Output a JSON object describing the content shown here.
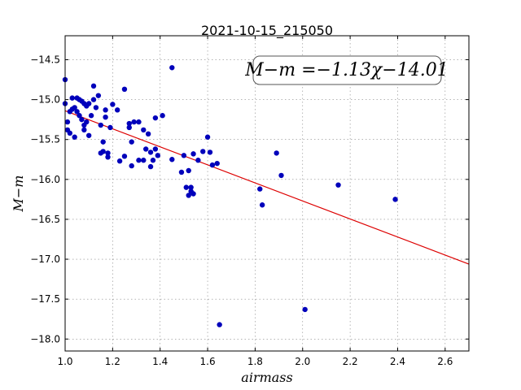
{
  "chart_data": {
    "type": "scatter",
    "title": "2021-10-15_215050",
    "xlabel": "airmass",
    "ylabel": "M−m",
    "xlim": [
      1.0,
      2.7
    ],
    "ylim": [
      -18.15,
      -14.2
    ],
    "y_inverted": true,
    "grid": true,
    "x_ticks": [
      1.0,
      1.2,
      1.4,
      1.6,
      1.8,
      2.0,
      2.2,
      2.4,
      2.6
    ],
    "x_tick_labels": [
      "1.0",
      "1.2",
      "1.4",
      "1.6",
      "1.8",
      "2.0",
      "2.2",
      "2.4",
      "2.6"
    ],
    "y_ticks": [
      -14.5,
      -15.0,
      -15.5,
      -16.0,
      -16.5,
      -17.0,
      -17.5,
      -18.0
    ],
    "y_tick_labels": [
      "−14.5",
      "−15.0",
      "−15.5",
      "−16.0",
      "−16.5",
      "−17.0",
      "−17.5",
      "−18.0"
    ],
    "annotation": "M−m =−1.13χ−14.01",
    "fit": {
      "slope": -1.13,
      "intercept": -14.01,
      "color": "#dd0000"
    },
    "marker_color": "#0000bb",
    "points": [
      [
        1.0,
        -14.75
      ],
      [
        1.0,
        -15.05
      ],
      [
        1.01,
        -15.28
      ],
      [
        1.01,
        -15.38
      ],
      [
        1.02,
        -15.15
      ],
      [
        1.02,
        -15.42
      ],
      [
        1.03,
        -14.98
      ],
      [
        1.03,
        -15.12
      ],
      [
        1.04,
        -15.47
      ],
      [
        1.04,
        -15.1
      ],
      [
        1.05,
        -14.98
      ],
      [
        1.05,
        -15.15
      ],
      [
        1.06,
        -15.0
      ],
      [
        1.06,
        -15.2
      ],
      [
        1.07,
        -15.02
      ],
      [
        1.07,
        -15.25
      ],
      [
        1.08,
        -15.05
      ],
      [
        1.08,
        -15.32
      ],
      [
        1.08,
        -15.38
      ],
      [
        1.09,
        -15.28
      ],
      [
        1.09,
        -15.08
      ],
      [
        1.1,
        -15.45
      ],
      [
        1.1,
        -15.05
      ],
      [
        1.11,
        -15.2
      ],
      [
        1.12,
        -14.83
      ],
      [
        1.12,
        -15.0
      ],
      [
        1.13,
        -15.1
      ],
      [
        1.14,
        -14.95
      ],
      [
        1.15,
        -15.32
      ],
      [
        1.15,
        -15.67
      ],
      [
        1.16,
        -15.53
      ],
      [
        1.16,
        -15.65
      ],
      [
        1.17,
        -15.22
      ],
      [
        1.17,
        -15.13
      ],
      [
        1.18,
        -15.67
      ],
      [
        1.18,
        -15.72
      ],
      [
        1.19,
        -15.35
      ],
      [
        1.2,
        -15.06
      ],
      [
        1.22,
        -15.13
      ],
      [
        1.23,
        -15.77
      ],
      [
        1.25,
        -14.87
      ],
      [
        1.25,
        -15.71
      ],
      [
        1.27,
        -15.3
      ],
      [
        1.27,
        -15.35
      ],
      [
        1.28,
        -15.83
      ],
      [
        1.28,
        -15.53
      ],
      [
        1.29,
        -15.28
      ],
      [
        1.31,
        -15.28
      ],
      [
        1.31,
        -15.76
      ],
      [
        1.33,
        -15.38
      ],
      [
        1.33,
        -15.76
      ],
      [
        1.34,
        -15.62
      ],
      [
        1.35,
        -15.43
      ],
      [
        1.36,
        -15.66
      ],
      [
        1.36,
        -15.84
      ],
      [
        1.37,
        -15.76
      ],
      [
        1.38,
        -15.23
      ],
      [
        1.38,
        -15.62
      ],
      [
        1.39,
        -15.7
      ],
      [
        1.41,
        -15.2
      ],
      [
        1.45,
        -14.6
      ],
      [
        1.45,
        -15.75
      ],
      [
        1.49,
        -15.91
      ],
      [
        1.5,
        -15.7
      ],
      [
        1.51,
        -16.1
      ],
      [
        1.52,
        -15.89
      ],
      [
        1.52,
        -16.2
      ],
      [
        1.53,
        -16.1
      ],
      [
        1.53,
        -16.15
      ],
      [
        1.54,
        -16.18
      ],
      [
        1.54,
        -15.68
      ],
      [
        1.56,
        -15.76
      ],
      [
        1.58,
        -15.65
      ],
      [
        1.6,
        -15.47
      ],
      [
        1.61,
        -15.66
      ],
      [
        1.62,
        -15.82
      ],
      [
        1.64,
        -15.8
      ],
      [
        1.65,
        -17.82
      ],
      [
        1.82,
        -16.12
      ],
      [
        1.83,
        -16.32
      ],
      [
        1.89,
        -15.67
      ],
      [
        1.91,
        -15.95
      ],
      [
        2.01,
        -17.63
      ],
      [
        2.15,
        -16.07
      ],
      [
        2.39,
        -16.25
      ]
    ]
  }
}
